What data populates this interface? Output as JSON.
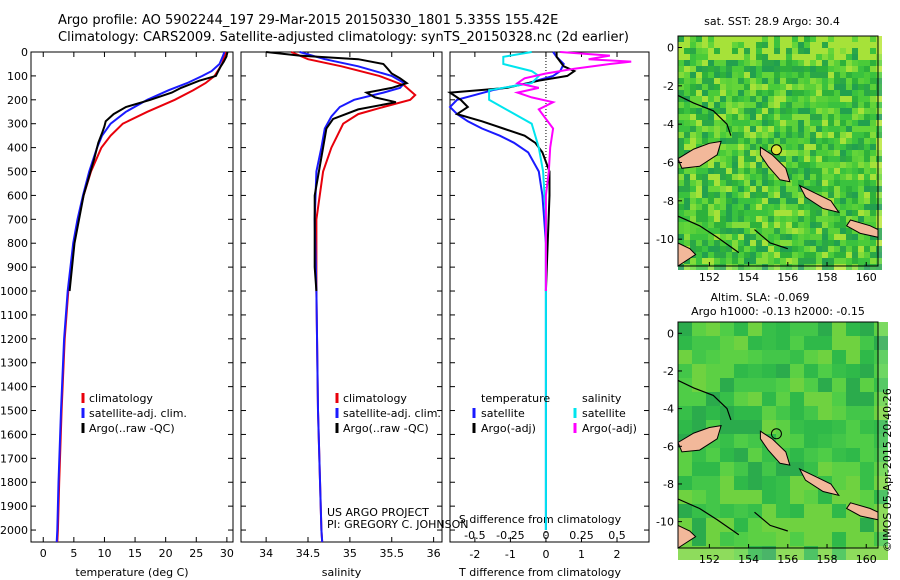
{
  "header": {
    "title_line1": "Argo profile: AO 5902244_197 29-Mar-2015 20150330_1801 5.335S 155.42E",
    "title_line2": "Climatology: CARS2009. Satellite-adjusted climatology: synTS_20150328.nc (2d earlier)"
  },
  "credits": {
    "project": "US ARGO PROJECT",
    "pi": "PI: GREGORY C. JOHNSON",
    "watermark": "©IMOS 05-Apr-2015 20:40:26"
  },
  "colors": {
    "climatology": "#e8000b",
    "satellite": "#1a1aff",
    "argo": "#000000",
    "sal_satellite": "#00e5ee",
    "sal_argo": "#ff00ff",
    "land": "#f2b89a"
  },
  "chart_data": [
    {
      "type": "line",
      "name": "temperature",
      "xlabel": "temperature (deg C)",
      "ylabel": "",
      "xlim": [
        -2,
        31
      ],
      "ylim": [
        2050,
        0
      ],
      "xticks": [
        0,
        5,
        10,
        15,
        20,
        25,
        30
      ],
      "yticks": [
        0,
        100,
        200,
        300,
        400,
        500,
        600,
        700,
        800,
        900,
        1000,
        1100,
        1200,
        1300,
        1400,
        1500,
        1600,
        1700,
        1800,
        1900,
        2000
      ],
      "legend": [
        "climatology",
        "satellite-adj. clim.",
        "Argo(..raw -QC)"
      ],
      "series": [
        {
          "name": "climatology",
          "depth": [
            0,
            20,
            50,
            80,
            100,
            130,
            160,
            200,
            250,
            300,
            350,
            400,
            500,
            600,
            700,
            800,
            1000,
            1200,
            1500,
            1800,
            2000,
            2050
          ],
          "values": [
            29.8,
            29.6,
            29.2,
            28.5,
            28,
            26.5,
            24.5,
            21.5,
            17,
            13,
            11,
            9.5,
            7.8,
            6.6,
            5.7,
            5,
            4.1,
            3.5,
            3,
            2.6,
            2.4,
            2.3
          ]
        },
        {
          "name": "satellite-adj. clim.",
          "depth": [
            0,
            20,
            50,
            80,
            100,
            130,
            160,
            200,
            250,
            300,
            350,
            400,
            500,
            600,
            700,
            800,
            1000,
            1200,
            1500,
            1800,
            2000,
            2050
          ],
          "values": [
            29.6,
            29.3,
            28.8,
            27.5,
            26,
            23.5,
            20.5,
            17,
            13.5,
            11,
            9.6,
            8.8,
            7.5,
            6.5,
            5.6,
            4.9,
            4,
            3.4,
            2.9,
            2.5,
            2.3,
            2.2
          ]
        },
        {
          "name": "Argo(..raw -QC)",
          "depth": [
            0,
            20,
            40,
            60,
            80,
            100,
            120,
            150,
            170,
            200,
            230,
            260,
            290,
            310,
            340,
            380,
            450,
            600,
            800,
            1000
          ],
          "values": [
            30.1,
            29.9,
            29.5,
            29,
            28.6,
            28.2,
            25.5,
            22.5,
            21,
            17.5,
            13.5,
            11.5,
            10.2,
            10,
            9.6,
            9,
            8.3,
            6.6,
            5.1,
            4.3
          ]
        }
      ]
    },
    {
      "type": "line",
      "name": "salinity",
      "xlabel": "salinity",
      "ylabel": "",
      "xlim": [
        33.7,
        36.1
      ],
      "ylim": [
        2050,
        0
      ],
      "xticks": [
        34,
        34.5,
        35,
        35.5,
        36
      ],
      "legend": [
        "climatology",
        "satellite-adj. clim.",
        "Argo(..raw -QC)"
      ],
      "series": [
        {
          "name": "climatology",
          "depth": [
            0,
            30,
            60,
            100,
            140,
            180,
            200,
            230,
            260,
            300,
            350,
            400,
            500,
            700,
            1000,
            1500,
            2000,
            2050
          ],
          "values": [
            34.3,
            34.5,
            34.9,
            35.35,
            35.65,
            35.78,
            35.72,
            35.4,
            35.1,
            34.92,
            34.85,
            34.78,
            34.68,
            34.6,
            34.6,
            34.62,
            34.66,
            34.67
          ]
        },
        {
          "name": "satellite-adj. clim.",
          "depth": [
            0,
            30,
            60,
            100,
            130,
            150,
            170,
            200,
            230,
            270,
            320,
            400,
            500,
            700,
            1000,
            1500,
            2000,
            2050
          ],
          "values": [
            34.4,
            34.7,
            35.1,
            35.5,
            35.65,
            35.6,
            35.4,
            35.05,
            34.88,
            34.78,
            34.7,
            34.66,
            34.6,
            34.58,
            34.6,
            34.62,
            34.66,
            34.67
          ]
        },
        {
          "name": "Argo(..raw -QC)",
          "depth": [
            0,
            15,
            30,
            50,
            70,
            90,
            110,
            130,
            150,
            170,
            190,
            210,
            240,
            280,
            320,
            400,
            600,
            900,
            1000
          ],
          "values": [
            34.0,
            34.4,
            35.1,
            35.4,
            35.45,
            35.5,
            35.6,
            35.68,
            35.5,
            35.2,
            35.3,
            35.55,
            35.1,
            34.8,
            34.72,
            34.68,
            34.58,
            34.58,
            34.6
          ]
        }
      ]
    },
    {
      "type": "line",
      "name": "difference",
      "xlabel": "T difference from climatology",
      "xlabel_top": "S difference from climatology",
      "xlim": [
        -2.7,
        2.9
      ],
      "ylim": [
        2050,
        0
      ],
      "xticks": [
        -2,
        -1,
        0,
        1,
        2
      ],
      "sticks": [
        -0.5,
        -0.25,
        0,
        0.25,
        0.5
      ],
      "legend_temperature_title": "temperature",
      "legend_salinity_title": "salinity",
      "legend": [
        "satellite",
        "Argo(-adj)",
        "satellite",
        "Argo(-adj)"
      ],
      "series": [
        {
          "name": "T satellite",
          "depth": [
            0,
            20,
            50,
            80,
            100,
            130,
            160,
            200,
            230,
            260,
            290,
            320,
            350,
            380,
            420,
            500,
            600,
            700,
            800,
            1000,
            1500,
            2000
          ],
          "values": [
            0.2,
            0.3,
            0.5,
            0.4,
            0.2,
            -0.5,
            -1.5,
            -2.5,
            -2.7,
            -2.5,
            -2.2,
            -1.8,
            -1.3,
            -0.9,
            -0.5,
            -0.2,
            -0.1,
            -0.05,
            0,
            0,
            0,
            0
          ]
        },
        {
          "name": "T Argo(-adj)",
          "depth": [
            0,
            20,
            40,
            60,
            80,
            100,
            120,
            150,
            170,
            200,
            230,
            260,
            290,
            320,
            350,
            380,
            420,
            500,
            600,
            800,
            1000
          ],
          "values": [
            0.3,
            0.3,
            0.4,
            0.5,
            0.8,
            0.6,
            -0.2,
            -1.1,
            -2.7,
            -2.4,
            -2.2,
            -2.5,
            -1.8,
            -1.2,
            -0.6,
            -0.3,
            -0.1,
            0.1,
            0.1,
            0.05,
            0.0
          ]
        },
        {
          "name": "S satellite",
          "depth": [
            0,
            20,
            50,
            80,
            100,
            130,
            160,
            200,
            250,
            300,
            400,
            500,
            700,
            1000,
            1500,
            2000
          ],
          "values": [
            -0.1,
            -0.3,
            -0.3,
            -0.1,
            -0.05,
            -0.1,
            -0.4,
            -0.4,
            -0.25,
            -0.1,
            -0.05,
            -0.02,
            0,
            0,
            0,
            0
          ]
        },
        {
          "name": "S Argo(-adj)",
          "depth": [
            0,
            15,
            30,
            40,
            50,
            70,
            90,
            110,
            130,
            150,
            170,
            190,
            210,
            240,
            280,
            320,
            400,
            500,
            600,
            1000
          ],
          "values": [
            0.1,
            0.45,
            0.3,
            0.6,
            0.45,
            0.2,
            0.0,
            -0.15,
            -0.2,
            -0.05,
            -0.2,
            -0.1,
            0.05,
            -0.05,
            0.0,
            0.05,
            0.03,
            0.02,
            0.0,
            0.0
          ]
        }
      ]
    },
    {
      "type": "heatmap",
      "name": "sst-map",
      "title": "sat. SST: 28.9  Argo: 30.4",
      "xlim": [
        150.4,
        160.6
      ],
      "ylim": [
        -11.4,
        0.6
      ],
      "xticks": [
        152,
        154,
        156,
        158,
        160
      ],
      "yticks": [
        0,
        -2,
        -4,
        -6,
        -8,
        -10
      ],
      "marker": {
        "lon": 155.42,
        "lat": -5.335
      }
    },
    {
      "type": "heatmap",
      "name": "sla-map",
      "title_line1": "Altim. SLA: -0.069",
      "title_line2": "Argo h1000: -0.13 h2000: -0.15",
      "xlim": [
        150.4,
        160.6
      ],
      "ylim": [
        -11.4,
        0.6
      ],
      "xticks": [
        152,
        154,
        156,
        158,
        160
      ],
      "yticks": [
        0,
        -2,
        -4,
        -6,
        -8,
        -10
      ],
      "marker": {
        "lon": 155.42,
        "lat": -5.335
      }
    }
  ]
}
